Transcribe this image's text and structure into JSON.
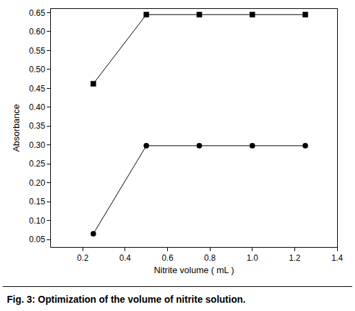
{
  "chart_data": {
    "type": "line",
    "caption": "Fig. 3: Optimization of the volume of nitrite solution.",
    "x_label": "Nitrite volume ( mL )",
    "y_label": "Absorbance",
    "x": [
      0.25,
      0.5,
      0.75,
      1.0,
      1.25
    ],
    "series": [
      {
        "color": "#000000",
        "marker": "square",
        "line_style": "solid",
        "values": [
          0.462,
          0.645,
          0.645,
          0.645,
          0.645
        ]
      },
      {
        "color": "#000000",
        "marker": "circle",
        "line_style": "solid",
        "values": [
          0.065,
          0.298,
          0.298,
          0.298,
          0.298
        ]
      }
    ],
    "xlim": [
      0.05,
      1.4
    ],
    "xticks": [
      0.2,
      0.4,
      0.6,
      0.8,
      {
        "value": 1,
        "label": "1.0"
      },
      1.2,
      1.4
    ],
    "ylim": [
      0.03,
      0.66
    ],
    "yticks": [
      0.05,
      {
        "value": 0.1,
        "label": "0.10"
      },
      0.15,
      {
        "value": 0.2,
        "label": "0.20"
      },
      0.25,
      {
        "value": 0.3,
        "label": "0.30"
      },
      0.35,
      {
        "value": 0.4,
        "label": "0.40"
      },
      0.45,
      {
        "value": 0.5,
        "label": "0.50"
      },
      0.55,
      {
        "value": 0.6,
        "label": "0.60"
      },
      0.65
    ],
    "grid": false
  }
}
